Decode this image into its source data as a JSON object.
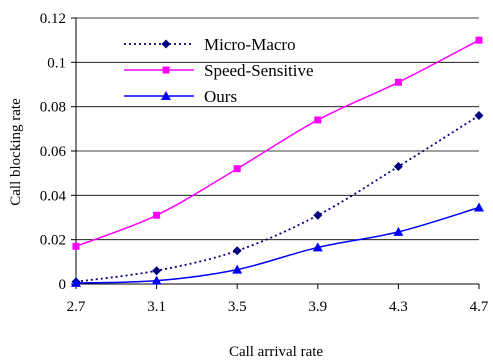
{
  "chart_data": {
    "type": "line",
    "x": [
      2.7,
      3.1,
      3.5,
      3.9,
      4.3,
      4.7
    ],
    "xlim": [
      2.7,
      4.7
    ],
    "ylim": [
      0,
      0.12
    ],
    "xticks": [
      "2.7",
      "3.1",
      "3.5",
      "3.9",
      "4.3",
      "4.7"
    ],
    "yticks": [
      "0",
      "0.02",
      "0.04",
      "0.06",
      "0.08",
      "0.1",
      "0.12"
    ],
    "xlabel": "Call arrival rate",
    "ylabel": "Call blocking rate",
    "grid": "horizontal",
    "legend_position": "top-left",
    "series": [
      {
        "name": "Micro-Macro",
        "values": [
          0.001,
          0.006,
          0.015,
          0.031,
          0.053,
          0.076
        ],
        "color": "#000080",
        "marker": "diamond",
        "dash": "dotted"
      },
      {
        "name": "Speed-Sensitive",
        "values": [
          0.017,
          0.031,
          0.052,
          0.074,
          0.091,
          0.11
        ],
        "color": "#ff00ff",
        "marker": "square",
        "dash": "solid"
      },
      {
        "name": "Ours",
        "values": [
          0.0005,
          0.0015,
          0.0065,
          0.0165,
          0.0235,
          0.0345
        ],
        "color": "#0000ff",
        "marker": "triangle",
        "dash": "solid"
      }
    ]
  }
}
